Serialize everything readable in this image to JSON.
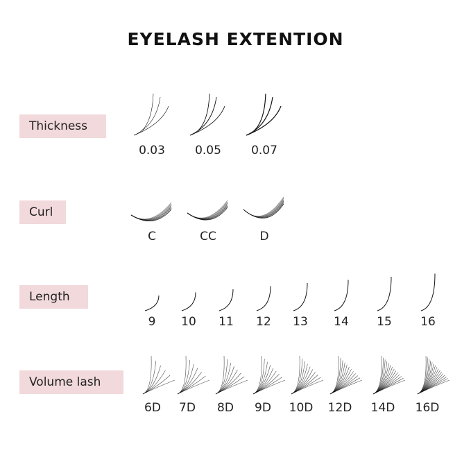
{
  "title": "EYELASH EXTENTION",
  "colors": {
    "label_bg": "#f2d9dc",
    "lash": "#111111"
  },
  "sections": [
    {
      "label": "Thickness",
      "kind": "thickness",
      "items": [
        "0.03",
        "0.05",
        "0.07"
      ]
    },
    {
      "label": "Curl",
      "kind": "curl",
      "items": [
        "C",
        "CC",
        "D"
      ]
    },
    {
      "label": "Length",
      "kind": "length",
      "items": [
        "9",
        "10",
        "11",
        "12",
        "13",
        "14",
        "15",
        "16"
      ]
    },
    {
      "label": "Volume lash",
      "kind": "volume",
      "items": [
        "6D",
        "7D",
        "8D",
        "9D",
        "10D",
        "12D",
        "14D",
        "16D"
      ]
    }
  ]
}
